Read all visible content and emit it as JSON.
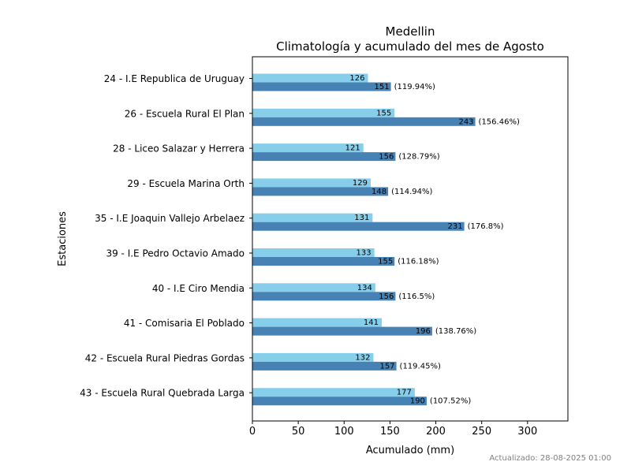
{
  "chart_data": {
    "type": "bar",
    "orientation": "horizontal",
    "title": "Medellin",
    "subtitle": "Climatología y acumulado del mes de Agosto",
    "xlabel": "Acumulado (mm)",
    "ylabel": "Estaciones",
    "xlim": [
      0,
      344
    ],
    "xticks": [
      "0",
      "50",
      "100",
      "150",
      "200",
      "250",
      "300"
    ],
    "grid": false,
    "categories": [
      "24 - I.E Republica de Uruguay",
      "26 - Escuela Rural El Plan",
      "28 - Liceo Salazar y Herrera",
      "29 - Escuela Marina Orth",
      "35 - I.E Joaquin Vallejo Arbelaez ",
      "39 - I.E Pedro Octavio Amado",
      "40 - I.E Ciro Mendia",
      "41 - Comisaria El Poblado",
      "42 - Escuela Rural Piedras Gordas",
      "43 - Escuela Rural Quebrada Larga"
    ],
    "series": [
      {
        "color": "#87ceeb",
        "values": [
          126,
          155,
          121,
          129,
          131,
          133,
          134,
          141,
          132,
          177
        ],
        "labels": [
          "126",
          "155",
          "121",
          "129",
          "131",
          "133",
          "134",
          "141",
          "132",
          "177"
        ]
      },
      {
        "color": "#4682b4",
        "values": [
          151,
          243,
          156,
          148,
          231,
          155,
          156,
          196,
          157,
          190
        ],
        "labels": [
          "151",
          "243",
          "156",
          "148",
          "231",
          "155",
          "156",
          "196",
          "157",
          "190"
        ],
        "percent_labels": [
          "(119.94%)",
          "(156.46%)",
          "(128.79%)",
          "(114.94%)",
          "(176.8%)",
          "(116.18%)",
          "(116.5%)",
          "(138.76%)",
          "(119.45%)",
          "(107.52%)"
        ]
      }
    ]
  },
  "footer": {
    "updated": "Actualizado: 28-08-2025 01:00"
  }
}
